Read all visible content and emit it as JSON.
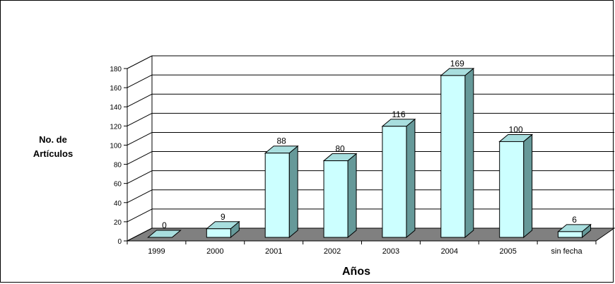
{
  "chart_data": {
    "type": "bar",
    "title": "",
    "xlabel": "Años",
    "ylabel": [
      "No. de",
      "Artículos"
    ],
    "categories": [
      "1999",
      "2000",
      "2001",
      "2002",
      "2003",
      "2004",
      "2005",
      "sin fecha"
    ],
    "values": [
      0,
      9,
      88,
      80,
      116,
      169,
      100,
      6
    ],
    "data_labels": [
      "0",
      "9",
      "88",
      "80",
      "116",
      "169",
      "100",
      "6"
    ],
    "y_ticks": [
      0,
      20,
      40,
      60,
      80,
      100,
      120,
      140,
      160,
      180
    ],
    "ylim": [
      0,
      180
    ],
    "grid": true,
    "legend": "none",
    "three_d": true,
    "colors": {
      "bar_front": "#ccffff",
      "bar_top": "#a8dede",
      "bar_side": "#669999",
      "floor": "#808080",
      "grid": "#000000"
    }
  }
}
